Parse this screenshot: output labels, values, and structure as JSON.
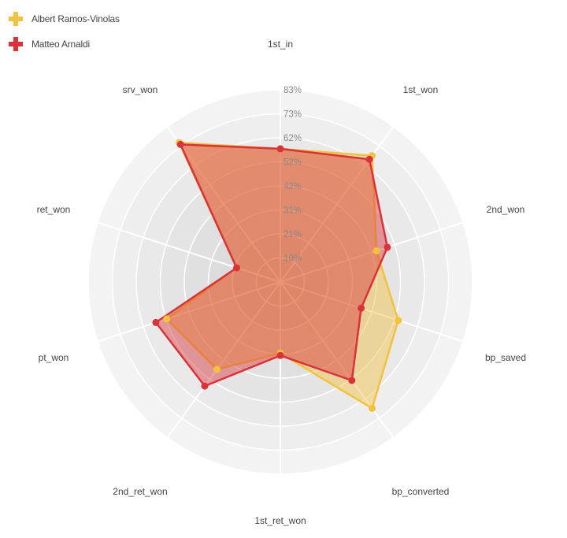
{
  "chart_data": {
    "type": "radar",
    "axes": [
      "1st_in",
      "1st_won",
      "2nd_won",
      "bp_saved",
      "bp_converted",
      "1st_ret_won",
      "2nd_ret_won",
      "pt_won",
      "ret_won",
      "srv_won"
    ],
    "tick_labels": [
      "10%",
      "21%",
      "31%",
      "42%",
      "52%",
      "62%",
      "73%",
      "83%"
    ],
    "tick_values": [
      10,
      21,
      31,
      42,
      52,
      62,
      73,
      83
    ],
    "range": [
      0,
      83
    ],
    "series": [
      {
        "name": "Albert Ramos-Vinolas",
        "color": "#f2c23e",
        "values": [
          58,
          68,
          44,
          54,
          68,
          31,
          47,
          52,
          20,
          75
        ]
      },
      {
        "name": "Matteo Arnaldi",
        "color": "#d9323a",
        "values": [
          58,
          66,
          49,
          37,
          53,
          32,
          56,
          57,
          20,
          74
        ]
      }
    ],
    "legend_position": "top-left",
    "grid": true
  }
}
